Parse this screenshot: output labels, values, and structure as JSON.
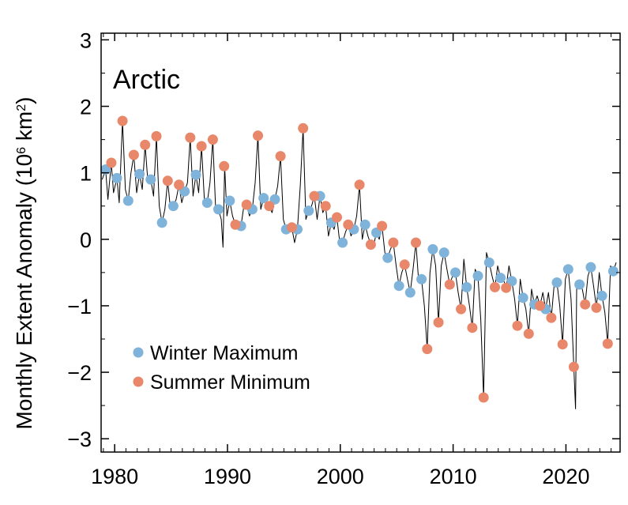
{
  "chart_data": {
    "type": "line",
    "title": "Arctic",
    "xlabel": "",
    "ylabel": {
      "main": "Monthly Extent Anomaly (10",
      "exponent1": "6",
      "unit": " km",
      "exponent2": "2",
      "close": ")"
    },
    "xlim": [
      1978.8,
      2024.8
    ],
    "ylim": [
      -3.2,
      3.1
    ],
    "x_ticks": [
      1980,
      1990,
      2000,
      2010,
      2020
    ],
    "x_tick_labels": [
      "1980",
      "1990",
      "2000",
      "2010",
      "2020"
    ],
    "y_ticks": [
      3,
      2,
      1,
      0,
      -1,
      -2,
      -3
    ],
    "y_tick_labels": [
      "3",
      "2",
      "1",
      "0",
      "−1",
      "−2",
      "−3"
    ],
    "grid": false,
    "legend": {
      "position": "bottom-left",
      "entries": [
        "Winter Maximum",
        "Summer Minimum"
      ]
    },
    "colors": {
      "winter": "#7fb3da",
      "summer": "#e8876a",
      "line": "#000000"
    },
    "series": [
      {
        "name": "Winter Maximum",
        "kind": "points",
        "points": [
          [
            1979.2,
            1.05
          ],
          [
            1980.2,
            0.92
          ],
          [
            1981.2,
            0.58
          ],
          [
            1982.2,
            0.98
          ],
          [
            1983.2,
            0.9
          ],
          [
            1984.2,
            0.25
          ],
          [
            1985.2,
            0.5
          ],
          [
            1986.2,
            0.72
          ],
          [
            1987.2,
            0.97
          ],
          [
            1988.2,
            0.55
          ],
          [
            1989.2,
            0.45
          ],
          [
            1990.2,
            0.58
          ],
          [
            1991.2,
            0.2
          ],
          [
            1992.2,
            0.45
          ],
          [
            1993.2,
            0.62
          ],
          [
            1994.2,
            0.6
          ],
          [
            1995.2,
            0.15
          ],
          [
            1996.2,
            0.15
          ],
          [
            1997.2,
            0.43
          ],
          [
            1998.2,
            0.65
          ],
          [
            1999.2,
            0.25
          ],
          [
            2000.2,
            -0.05
          ],
          [
            2001.2,
            0.15
          ],
          [
            2002.2,
            0.22
          ],
          [
            2003.2,
            0.1
          ],
          [
            2004.2,
            -0.28
          ],
          [
            2005.2,
            -0.7
          ],
          [
            2006.2,
            -0.8
          ],
          [
            2007.2,
            -0.6
          ],
          [
            2008.2,
            -0.15
          ],
          [
            2009.2,
            -0.2
          ],
          [
            2010.2,
            -0.5
          ],
          [
            2011.2,
            -0.72
          ],
          [
            2012.2,
            -0.55
          ],
          [
            2013.2,
            -0.35
          ],
          [
            2014.2,
            -0.58
          ],
          [
            2015.2,
            -0.63
          ],
          [
            2016.2,
            -0.88
          ],
          [
            2017.2,
            -0.98
          ],
          [
            2018.2,
            -1.05
          ],
          [
            2019.2,
            -0.65
          ],
          [
            2020.2,
            -0.45
          ],
          [
            2021.2,
            -0.68
          ],
          [
            2022.2,
            -0.42
          ],
          [
            2023.2,
            -0.85
          ],
          [
            2024.2,
            -0.48
          ]
        ]
      },
      {
        "name": "Summer Minimum",
        "kind": "points",
        "points": [
          [
            1979.7,
            1.15
          ],
          [
            1980.7,
            1.78
          ],
          [
            1981.7,
            1.27
          ],
          [
            1982.7,
            1.42
          ],
          [
            1983.7,
            1.55
          ],
          [
            1984.7,
            0.88
          ],
          [
            1985.7,
            0.82
          ],
          [
            1986.7,
            1.53
          ],
          [
            1987.7,
            1.4
          ],
          [
            1988.7,
            1.5
          ],
          [
            1989.7,
            1.1
          ],
          [
            1990.7,
            0.22
          ],
          [
            1991.7,
            0.52
          ],
          [
            1992.7,
            1.56
          ],
          [
            1993.7,
            0.5
          ],
          [
            1994.7,
            1.25
          ],
          [
            1995.7,
            0.18
          ],
          [
            1996.7,
            1.67
          ],
          [
            1997.7,
            0.65
          ],
          [
            1998.7,
            0.5
          ],
          [
            1999.7,
            0.33
          ],
          [
            2000.7,
            0.22
          ],
          [
            2001.7,
            0.82
          ],
          [
            2002.7,
            -0.08
          ],
          [
            2003.7,
            0.2
          ],
          [
            2004.7,
            -0.05
          ],
          [
            2005.7,
            -0.38
          ],
          [
            2006.7,
            -0.05
          ],
          [
            2007.7,
            -1.65
          ],
          [
            2008.7,
            -1.25
          ],
          [
            2009.7,
            -0.68
          ],
          [
            2010.7,
            -1.05
          ],
          [
            2011.7,
            -1.33
          ],
          [
            2012.7,
            -2.38
          ],
          [
            2013.7,
            -0.72
          ],
          [
            2014.7,
            -0.73
          ],
          [
            2015.7,
            -1.3
          ],
          [
            2016.7,
            -1.42
          ],
          [
            2017.7,
            -1.0
          ],
          [
            2018.7,
            -1.18
          ],
          [
            2019.7,
            -1.58
          ],
          [
            2020.7,
            -1.92
          ],
          [
            2021.7,
            -0.98
          ],
          [
            2022.7,
            -1.03
          ],
          [
            2023.7,
            -1.57
          ]
        ]
      },
      {
        "name": "Monthly",
        "kind": "line",
        "points": [
          [
            1978.9,
            0.9
          ],
          [
            1979.2,
            1.05
          ],
          [
            1979.4,
            0.6
          ],
          [
            1979.7,
            1.15
          ],
          [
            1979.9,
            0.7
          ],
          [
            1980.2,
            0.92
          ],
          [
            1980.4,
            0.55
          ],
          [
            1980.7,
            1.78
          ],
          [
            1980.95,
            0.75
          ],
          [
            1981.2,
            0.58
          ],
          [
            1981.45,
            1.0
          ],
          [
            1981.7,
            1.27
          ],
          [
            1981.95,
            0.7
          ],
          [
            1982.2,
            0.98
          ],
          [
            1982.45,
            0.75
          ],
          [
            1982.7,
            1.42
          ],
          [
            1982.95,
            0.85
          ],
          [
            1983.2,
            0.9
          ],
          [
            1983.45,
            0.65
          ],
          [
            1983.7,
            1.55
          ],
          [
            1983.95,
            0.5
          ],
          [
            1984.2,
            0.25
          ],
          [
            1984.45,
            0.45
          ],
          [
            1984.7,
            0.88
          ],
          [
            1984.95,
            0.45
          ],
          [
            1985.2,
            0.5
          ],
          [
            1985.45,
            0.6
          ],
          [
            1985.7,
            0.82
          ],
          [
            1985.95,
            0.55
          ],
          [
            1986.2,
            0.72
          ],
          [
            1986.45,
            0.85
          ],
          [
            1986.7,
            1.53
          ],
          [
            1986.95,
            0.65
          ],
          [
            1987.2,
            0.97
          ],
          [
            1987.45,
            0.7
          ],
          [
            1987.7,
            1.4
          ],
          [
            1987.95,
            0.6
          ],
          [
            1988.2,
            0.55
          ],
          [
            1988.45,
            0.85
          ],
          [
            1988.7,
            1.5
          ],
          [
            1988.95,
            0.45
          ],
          [
            1989.2,
            0.45
          ],
          [
            1989.45,
            0.3
          ],
          [
            1989.6,
            -0.12
          ],
          [
            1989.75,
            1.1
          ],
          [
            1989.95,
            0.35
          ],
          [
            1990.2,
            0.58
          ],
          [
            1990.45,
            0.35
          ],
          [
            1990.7,
            0.22
          ],
          [
            1990.95,
            0.15
          ],
          [
            1991.2,
            0.2
          ],
          [
            1991.45,
            0.5
          ],
          [
            1991.7,
            0.52
          ],
          [
            1991.95,
            0.35
          ],
          [
            1992.2,
            0.45
          ],
          [
            1992.45,
            0.85
          ],
          [
            1992.7,
            1.56
          ],
          [
            1992.95,
            0.45
          ],
          [
            1993.2,
            0.62
          ],
          [
            1993.45,
            0.55
          ],
          [
            1993.7,
            0.5
          ],
          [
            1993.95,
            0.4
          ],
          [
            1994.2,
            0.6
          ],
          [
            1994.45,
            0.8
          ],
          [
            1994.7,
            1.25
          ],
          [
            1994.95,
            0.3
          ],
          [
            1995.2,
            0.15
          ],
          [
            1995.45,
            0.2
          ],
          [
            1995.7,
            0.18
          ],
          [
            1995.95,
            -0.05
          ],
          [
            1996.2,
            0.15
          ],
          [
            1996.45,
            0.8
          ],
          [
            1996.7,
            1.67
          ],
          [
            1996.95,
            0.3
          ],
          [
            1997.2,
            0.43
          ],
          [
            1997.45,
            0.5
          ],
          [
            1997.7,
            0.65
          ],
          [
            1997.95,
            0.3
          ],
          [
            1998.2,
            0.65
          ],
          [
            1998.45,
            0.4
          ],
          [
            1998.7,
            0.5
          ],
          [
            1998.95,
            0.05
          ],
          [
            1999.2,
            0.25
          ],
          [
            1999.45,
            0.15
          ],
          [
            1999.7,
            0.33
          ],
          [
            1999.95,
            -0.05
          ],
          [
            2000.2,
            -0.05
          ],
          [
            2000.45,
            0.1
          ],
          [
            2000.7,
            0.22
          ],
          [
            2000.95,
            0.05
          ],
          [
            2001.2,
            0.15
          ],
          [
            2001.45,
            0.35
          ],
          [
            2001.7,
            0.82
          ],
          [
            2001.95,
            0.0
          ],
          [
            2002.2,
            0.22
          ],
          [
            2002.45,
            0.05
          ],
          [
            2002.7,
            -0.08
          ],
          [
            2002.95,
            -0.1
          ],
          [
            2003.2,
            0.1
          ],
          [
            2003.45,
            0.0
          ],
          [
            2003.7,
            0.2
          ],
          [
            2003.95,
            -0.2
          ],
          [
            2004.2,
            -0.28
          ],
          [
            2004.45,
            -0.15
          ],
          [
            2004.7,
            -0.05
          ],
          [
            2004.95,
            -0.4
          ],
          [
            2005.2,
            -0.7
          ],
          [
            2005.45,
            -0.5
          ],
          [
            2005.7,
            -0.38
          ],
          [
            2005.95,
            -0.6
          ],
          [
            2006.2,
            -0.8
          ],
          [
            2006.45,
            -0.45
          ],
          [
            2006.7,
            -0.05
          ],
          [
            2006.95,
            -0.65
          ],
          [
            2007.2,
            -0.6
          ],
          [
            2007.45,
            -1.0
          ],
          [
            2007.7,
            -1.65
          ],
          [
            2007.95,
            -0.5
          ],
          [
            2008.2,
            -0.15
          ],
          [
            2008.45,
            -0.4
          ],
          [
            2008.7,
            -1.25
          ],
          [
            2008.95,
            -0.4
          ],
          [
            2009.2,
            -0.2
          ],
          [
            2009.45,
            -0.45
          ],
          [
            2009.7,
            -0.68
          ],
          [
            2009.95,
            -0.55
          ],
          [
            2010.2,
            -0.5
          ],
          [
            2010.45,
            -0.8
          ],
          [
            2010.7,
            -1.05
          ],
          [
            2010.95,
            -0.3
          ],
          [
            2011.2,
            -0.72
          ],
          [
            2011.45,
            -1.0
          ],
          [
            2011.7,
            -1.33
          ],
          [
            2011.95,
            -0.45
          ],
          [
            2012.2,
            -0.55
          ],
          [
            2012.45,
            -1.2
          ],
          [
            2012.7,
            -2.38
          ],
          [
            2012.95,
            -0.2
          ],
          [
            2013.2,
            -0.35
          ],
          [
            2013.45,
            -0.55
          ],
          [
            2013.7,
            -0.72
          ],
          [
            2013.95,
            -0.4
          ],
          [
            2014.2,
            -0.58
          ],
          [
            2014.45,
            -0.6
          ],
          [
            2014.7,
            -0.73
          ],
          [
            2014.95,
            -0.4
          ],
          [
            2015.2,
            -0.63
          ],
          [
            2015.45,
            -0.9
          ],
          [
            2015.7,
            -1.3
          ],
          [
            2015.95,
            -0.6
          ],
          [
            2016.2,
            -0.88
          ],
          [
            2016.45,
            -1.05
          ],
          [
            2016.7,
            -1.42
          ],
          [
            2016.95,
            -0.75
          ],
          [
            2017.2,
            -0.98
          ],
          [
            2017.45,
            -0.85
          ],
          [
            2017.7,
            -1.0
          ],
          [
            2017.95,
            -0.8
          ],
          [
            2018.2,
            -1.05
          ],
          [
            2018.45,
            -0.8
          ],
          [
            2018.7,
            -1.18
          ],
          [
            2018.95,
            -0.7
          ],
          [
            2019.2,
            -0.65
          ],
          [
            2019.45,
            -1.0
          ],
          [
            2019.7,
            -1.58
          ],
          [
            2019.95,
            -0.6
          ],
          [
            2020.2,
            -0.45
          ],
          [
            2020.45,
            -0.9
          ],
          [
            2020.7,
            -1.92
          ],
          [
            2020.85,
            -2.55
          ],
          [
            2020.95,
            -0.75
          ],
          [
            2021.2,
            -0.68
          ],
          [
            2021.45,
            -0.75
          ],
          [
            2021.7,
            -0.98
          ],
          [
            2021.95,
            -0.55
          ],
          [
            2022.2,
            -0.42
          ],
          [
            2022.45,
            -0.7
          ],
          [
            2022.7,
            -1.03
          ],
          [
            2022.95,
            -0.5
          ],
          [
            2023.2,
            -0.85
          ],
          [
            2023.45,
            -1.1
          ],
          [
            2023.7,
            -1.57
          ],
          [
            2023.95,
            -0.4
          ],
          [
            2024.2,
            -0.48
          ],
          [
            2024.45,
            -0.35
          ]
        ]
      }
    ]
  }
}
